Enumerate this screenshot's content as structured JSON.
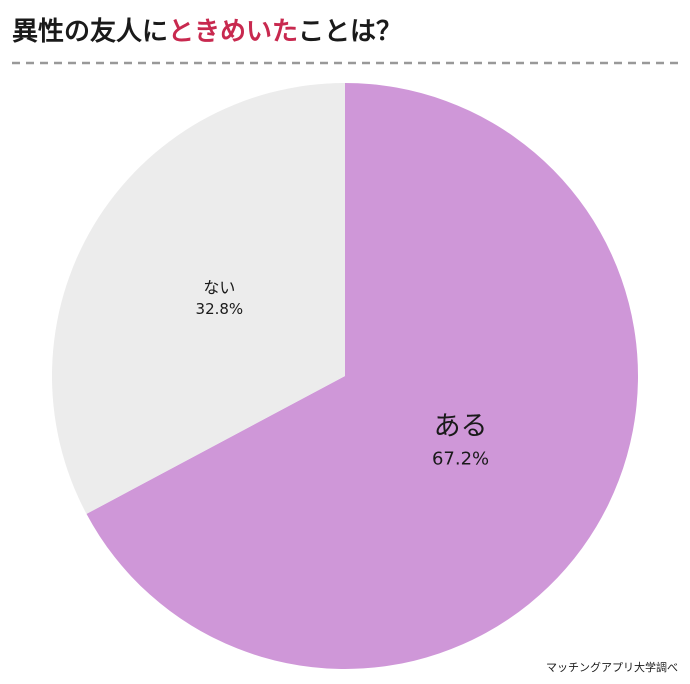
{
  "chart_data": {
    "type": "pie",
    "title": [
      "異性の友人に",
      "ときめいた",
      "ことは？"
    ],
    "title_colors": [
      "#1a1a1a",
      "#c8294f",
      "#1a1a1a"
    ],
    "categories": [
      "ある",
      "ない"
    ],
    "values": [
      67.2,
      32.8
    ],
    "value_labels": [
      "67.2%",
      "32.8%"
    ],
    "colors": [
      "#cf97d8",
      "#ececec"
    ],
    "source": "マッチングアプリ大学調べ"
  }
}
